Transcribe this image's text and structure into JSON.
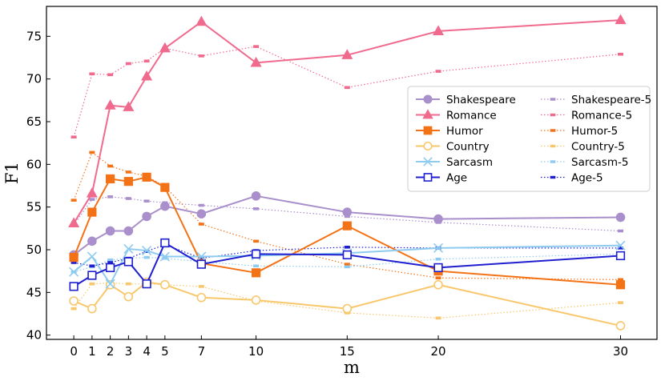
{
  "chart_data": {
    "type": "line",
    "xlabel": "m",
    "ylabel": "F1",
    "x": [
      0,
      1,
      2,
      3,
      4,
      5,
      7,
      10,
      15,
      20,
      30
    ],
    "x_ticks": [
      "0",
      "1",
      "2",
      "3",
      "4",
      "5",
      "7",
      "10",
      "15",
      "20",
      "30"
    ],
    "y_ticks": [
      "40",
      "45",
      "50",
      "55",
      "60",
      "65",
      "70",
      "75"
    ],
    "xlim": [
      -1.5,
      32
    ],
    "ylim": [
      39.5,
      78.5
    ],
    "legend_position": "center-right",
    "series": [
      {
        "name": "Shakespeare",
        "color": "#a98fcb",
        "style": "solid",
        "marker": "circle",
        "fill": "filled",
        "values": [
          49.4,
          51.0,
          52.2,
          52.2,
          53.9,
          55.1,
          54.2,
          56.3,
          54.4,
          53.6,
          53.8
        ]
      },
      {
        "name": "Romance",
        "color": "#f06a8e",
        "style": "solid",
        "marker": "triangle",
        "fill": "filled",
        "values": [
          53.1,
          56.6,
          66.9,
          66.7,
          70.3,
          73.6,
          76.7,
          71.9,
          72.8,
          75.6,
          76.9
        ]
      },
      {
        "name": "Humor",
        "color": "#f47216",
        "style": "solid",
        "marker": "square",
        "fill": "filled",
        "values": [
          49.1,
          54.4,
          58.3,
          58.0,
          58.5,
          57.3,
          48.4,
          47.3,
          52.8,
          47.5,
          45.9
        ]
      },
      {
        "name": "Country",
        "color": "#f9c76b",
        "style": "solid",
        "marker": "circle",
        "fill": "hollow",
        "values": [
          44.0,
          43.1,
          45.9,
          44.5,
          46.2,
          45.9,
          44.4,
          44.1,
          43.1,
          45.9,
          41.1
        ]
      },
      {
        "name": "Sarcasm",
        "color": "#8ecbf0",
        "style": "solid",
        "marker": "x",
        "fill": "none",
        "values": [
          47.4,
          49.2,
          46.0,
          50.1,
          49.9,
          49.2,
          49.2,
          49.3,
          49.6,
          50.2,
          50.5
        ]
      },
      {
        "name": "Age",
        "color": "#1f1fcf",
        "style": "solid",
        "marker": "square",
        "fill": "hollow",
        "values": [
          45.7,
          47.0,
          47.9,
          48.6,
          46.0,
          50.8,
          48.3,
          49.5,
          49.4,
          47.9,
          49.3
        ]
      },
      {
        "name": "Shakespeare-5",
        "color": "#a98fcb",
        "style": "dotted",
        "marker": "dash",
        "fill": "filled",
        "values": [
          52.9,
          55.9,
          56.2,
          56.0,
          55.7,
          55.5,
          55.2,
          54.8,
          53.9,
          53.2,
          52.2
        ]
      },
      {
        "name": "Romance-5",
        "color": "#f06a8e",
        "style": "dotted",
        "marker": "dash",
        "fill": "filled",
        "values": [
          63.2,
          70.6,
          70.5,
          71.8,
          72.1,
          73.6,
          72.7,
          73.8,
          69.0,
          70.9,
          72.9
        ]
      },
      {
        "name": "Humor-5",
        "color": "#f47216",
        "style": "dotted",
        "marker": "dash",
        "fill": "filled",
        "values": [
          55.8,
          61.4,
          59.8,
          59.1,
          58.6,
          57.4,
          53.0,
          51.0,
          48.3,
          46.7,
          46.5
        ]
      },
      {
        "name": "Country-5",
        "color": "#f9c76b",
        "style": "dotted",
        "marker": "dash",
        "fill": "filled",
        "values": [
          43.1,
          46.0,
          46.1,
          46.0,
          46.0,
          45.9,
          45.7,
          44.0,
          42.6,
          42.0,
          43.8
        ]
      },
      {
        "name": "Sarcasm-5",
        "color": "#8ecbf0",
        "style": "dotted",
        "marker": "dash",
        "fill": "filled",
        "values": [
          47.4,
          48.0,
          48.8,
          49.0,
          49.1,
          49.0,
          48.6,
          48.1,
          48.0,
          48.9,
          49.5
        ]
      },
      {
        "name": "Age-5",
        "color": "#1f1fcf",
        "style": "dotted",
        "marker": "dash",
        "fill": "filled",
        "values": [
          48.5,
          48.1,
          48.5,
          49.0,
          49.8,
          50.6,
          49.0,
          49.9,
          50.3,
          50.2,
          50.2
        ]
      }
    ]
  }
}
